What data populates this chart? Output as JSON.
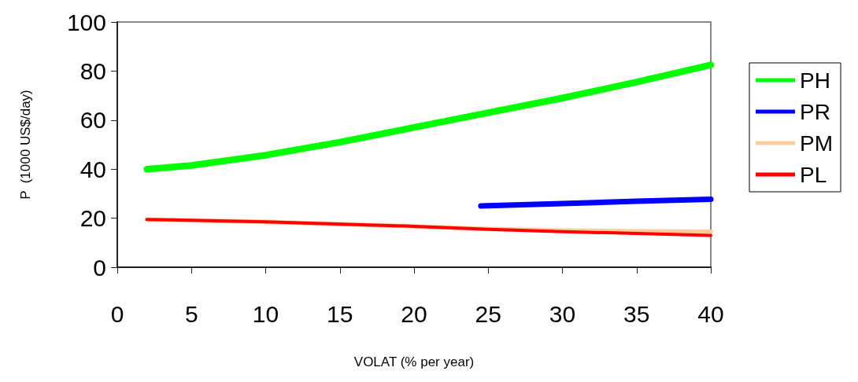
{
  "chart_data": {
    "type": "line",
    "xlabel": "VOLAT (% per year)",
    "ylabel": "P  (1000 US$/day)",
    "xlim": [
      0,
      40
    ],
    "xticks": [
      0,
      5,
      10,
      15,
      20,
      25,
      30,
      35,
      40
    ],
    "ylim": [
      0,
      100
    ],
    "yticks": [
      0,
      20,
      40,
      60,
      80,
      100
    ],
    "grid": false,
    "legend": "right",
    "marker": "none",
    "line_style": "solid",
    "series": [
      {
        "name": "PH",
        "color": "#00ff00",
        "x": [
          2,
          5,
          10,
          15,
          20,
          25,
          30,
          35,
          40
        ],
        "values": [
          40,
          41.5,
          45.7,
          51,
          57,
          63,
          69,
          75.5,
          82.5
        ]
      },
      {
        "name": "PR",
        "color": "#0000ff",
        "x": [
          24.5,
          30,
          35,
          40
        ],
        "values": [
          25,
          26,
          26.9,
          27.7
        ]
      },
      {
        "name": "PM",
        "color": "#ffcc99",
        "x": [
          2,
          10,
          20,
          25,
          30,
          35,
          40
        ],
        "values": [
          19.5,
          18.5,
          16.7,
          15.6,
          15,
          14.7,
          14.5
        ]
      },
      {
        "name": "PL",
        "color": "#ff0000",
        "x": [
          2,
          10,
          20,
          25,
          30,
          35,
          40
        ],
        "values": [
          19.5,
          18.5,
          16.7,
          15.5,
          14.5,
          13.8,
          13
        ]
      }
    ]
  }
}
